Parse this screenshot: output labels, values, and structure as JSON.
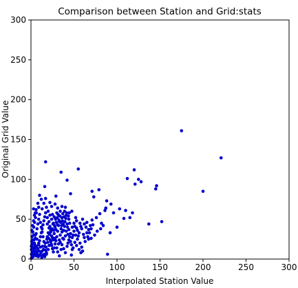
{
  "chart_data": {
    "type": "scatter",
    "title": "Comparison between Station and Grid:stats",
    "xlabel": "Interpolated Station Value",
    "ylabel": "Original Grid Value",
    "xlim": [
      0,
      300
    ],
    "ylim": [
      0,
      300
    ],
    "xticks": [
      "0",
      "50",
      "100",
      "150",
      "200",
      "250",
      "300"
    ],
    "yticks": [
      "0",
      "50",
      "100",
      "150",
      "200",
      "250",
      "300"
    ],
    "grid": false,
    "marker_color": "#0000cc",
    "series": [
      {
        "points": [
          [
            175,
            161
          ],
          [
            221,
            127
          ],
          [
            200,
            85
          ],
          [
            17,
            122
          ],
          [
            55,
            113
          ],
          [
            120,
            112
          ],
          [
            35,
            109
          ],
          [
            125,
            100
          ],
          [
            112,
            101
          ],
          [
            128,
            97
          ],
          [
            121,
            94
          ],
          [
            146,
            92
          ],
          [
            145,
            88
          ],
          [
            16,
            91
          ],
          [
            42,
            99
          ],
          [
            29,
            79
          ],
          [
            46,
            82
          ],
          [
            22,
            71
          ],
          [
            71,
            85
          ],
          [
            79,
            87
          ],
          [
            88,
            73
          ],
          [
            73,
            78
          ],
          [
            137,
            44
          ],
          [
            152,
            47
          ],
          [
            118,
            58
          ],
          [
            110,
            61
          ],
          [
            108,
            51
          ],
          [
            103,
            63
          ],
          [
            96,
            58
          ],
          [
            93,
            69
          ],
          [
            87,
            64
          ],
          [
            86,
            61
          ],
          [
            80,
            57
          ],
          [
            76,
            52
          ],
          [
            71,
            49
          ],
          [
            65,
            46
          ],
          [
            62,
            44
          ],
          [
            58,
            41
          ],
          [
            53,
            39
          ],
          [
            61,
            31
          ],
          [
            55,
            29
          ],
          [
            67,
            37
          ],
          [
            72,
            43
          ],
          [
            82,
            45
          ],
          [
            92,
            33
          ],
          [
            100,
            40
          ],
          [
            115,
            52
          ],
          [
            89,
            6
          ],
          [
            47,
            5
          ],
          [
            49,
            14
          ],
          [
            43,
            20
          ],
          [
            38,
            25
          ],
          [
            34,
            30
          ],
          [
            31,
            35
          ],
          [
            28,
            40
          ],
          [
            26,
            45
          ],
          [
            24,
            50
          ],
          [
            22,
            55
          ],
          [
            20,
            60
          ],
          [
            18,
            65
          ],
          [
            15,
            70
          ],
          [
            12,
            75
          ],
          [
            10,
            80
          ],
          [
            8,
            70
          ],
          [
            6,
            62
          ],
          [
            4,
            55
          ],
          [
            3,
            48
          ],
          [
            2,
            42
          ],
          [
            1,
            36
          ],
          [
            5,
            30
          ],
          [
            7,
            25
          ],
          [
            9,
            20
          ],
          [
            11,
            15
          ],
          [
            13,
            10
          ],
          [
            14,
            5
          ],
          [
            16,
            3
          ],
          [
            18,
            8
          ],
          [
            20,
            12
          ],
          [
            21,
            17
          ],
          [
            23,
            22
          ],
          [
            25,
            27
          ],
          [
            27,
            32
          ],
          [
            29,
            37
          ],
          [
            32,
            42
          ],
          [
            33,
            47
          ],
          [
            36,
            52
          ],
          [
            37,
            57
          ],
          [
            39,
            60
          ],
          [
            41,
            55
          ],
          [
            44,
            50
          ],
          [
            45,
            45
          ],
          [
            48,
            40
          ],
          [
            50,
            35
          ],
          [
            52,
            30
          ],
          [
            54,
            25
          ],
          [
            57,
            20
          ],
          [
            59,
            15
          ],
          [
            60,
            10
          ],
          [
            63,
            22
          ],
          [
            66,
            28
          ],
          [
            68,
            33
          ],
          [
            70,
            26
          ],
          [
            74,
            30
          ],
          [
            77,
            35
          ],
          [
            81,
            38
          ],
          [
            84,
            42
          ],
          [
            1,
            2
          ],
          [
            2,
            5
          ],
          [
            3,
            8
          ],
          [
            4,
            11
          ],
          [
            5,
            14
          ],
          [
            6,
            4
          ],
          [
            7,
            9
          ],
          [
            8,
            13
          ],
          [
            9,
            18
          ],
          [
            10,
            23
          ],
          [
            11,
            28
          ],
          [
            12,
            33
          ],
          [
            13,
            38
          ],
          [
            14,
            43
          ],
          [
            15,
            48
          ],
          [
            16,
            53
          ],
          [
            17,
            58
          ],
          [
            19,
            44
          ],
          [
            21,
            39
          ],
          [
            23,
            34
          ],
          [
            24,
            29
          ],
          [
            26,
            24
          ],
          [
            28,
            19
          ],
          [
            30,
            14
          ],
          [
            31,
            9
          ],
          [
            33,
            4
          ],
          [
            35,
            12
          ],
          [
            36,
            18
          ],
          [
            38,
            13
          ],
          [
            40,
            8
          ],
          [
            42,
            16
          ],
          [
            44,
            24
          ],
          [
            46,
            32
          ],
          [
            48,
            27
          ],
          [
            51,
            21
          ],
          [
            53,
            17
          ],
          [
            56,
            12
          ],
          [
            58,
            8
          ],
          [
            1,
            18
          ],
          [
            2,
            24
          ],
          [
            3,
            30
          ],
          [
            4,
            20
          ],
          [
            5,
            26
          ],
          [
            6,
            32
          ],
          [
            7,
            38
          ],
          [
            8,
            44
          ],
          [
            9,
            50
          ],
          [
            10,
            56
          ],
          [
            11,
            46
          ],
          [
            12,
            40
          ],
          [
            13,
            34
          ],
          [
            14,
            28
          ],
          [
            15,
            22
          ],
          [
            16,
            16
          ],
          [
            17,
            11
          ],
          [
            18,
            6
          ],
          [
            19,
            28
          ],
          [
            20,
            33
          ],
          [
            21,
            47
          ],
          [
            22,
            41
          ],
          [
            23,
            36
          ],
          [
            24,
            17
          ],
          [
            25,
            13
          ],
          [
            26,
            9
          ],
          [
            27,
            14
          ],
          [
            28,
            26
          ],
          [
            29,
            23
          ],
          [
            30,
            28
          ],
          [
            31,
            43
          ],
          [
            32,
            19
          ],
          [
            33,
            24
          ],
          [
            34,
            21
          ],
          [
            35,
            38
          ],
          [
            36,
            34
          ],
          [
            37,
            26
          ],
          [
            38,
            36
          ],
          [
            39,
            41
          ],
          [
            40,
            29
          ],
          [
            41,
            35
          ],
          [
            42,
            44
          ],
          [
            43,
            31
          ],
          [
            44,
            37
          ],
          [
            45,
            28
          ],
          [
            46,
            22
          ],
          [
            47,
            18
          ],
          [
            48,
            12
          ],
          [
            49,
            30
          ],
          [
            50,
            45
          ],
          [
            51,
            41
          ],
          [
            52,
            52
          ],
          [
            53,
            48
          ],
          [
            54,
            36
          ],
          [
            56,
            33
          ],
          [
            57,
            45
          ],
          [
            59,
            38
          ],
          [
            60,
            50
          ],
          [
            62,
            27
          ],
          [
            64,
            40
          ],
          [
            65,
            33
          ],
          [
            67,
            25
          ],
          [
            69,
            42
          ],
          [
            70,
            38
          ],
          [
            0.5,
            1
          ],
          [
            0.5,
            6
          ],
          [
            0.5,
            12
          ],
          [
            1.5,
            9
          ],
          [
            2.5,
            3
          ],
          [
            3.5,
            15
          ],
          [
            4.5,
            6
          ],
          [
            0.8,
            22
          ],
          [
            1.2,
            28
          ],
          [
            2.2,
            34
          ],
          [
            3.2,
            40
          ],
          [
            4.2,
            46
          ],
          [
            5.2,
            52
          ],
          [
            6.2,
            58
          ],
          [
            0.5,
            16
          ],
          [
            1.5,
            20
          ],
          [
            2.5,
            14
          ],
          [
            3.5,
            24
          ],
          [
            4.5,
            18
          ],
          [
            5.5,
            10
          ],
          [
            6.5,
            16
          ],
          [
            7.5,
            6
          ],
          [
            8.5,
            3
          ],
          [
            9.5,
            10
          ],
          [
            10.5,
            5
          ],
          [
            11.5,
            8
          ],
          [
            12.5,
            2
          ],
          [
            13.5,
            16
          ],
          [
            14.5,
            12
          ],
          [
            15.5,
            6
          ],
          [
            16.5,
            20
          ],
          [
            17.5,
            15
          ],
          [
            18.5,
            25
          ],
          [
            19.5,
            21
          ],
          [
            20.5,
            26
          ],
          [
            21.5,
            31
          ],
          [
            22.5,
            24
          ],
          [
            23.5,
            19
          ],
          [
            24.5,
            38
          ],
          [
            25.5,
            44
          ],
          [
            26.5,
            36
          ],
          [
            27.5,
            42
          ],
          [
            28.5,
            50
          ],
          [
            29.5,
            46
          ],
          [
            30.5,
            52
          ],
          [
            31.5,
            56
          ],
          [
            32.5,
            49
          ],
          [
            33.5,
            54
          ],
          [
            34.5,
            46
          ],
          [
            35.5,
            42
          ],
          [
            36.5,
            48
          ],
          [
            37.5,
            44
          ],
          [
            38.5,
            53
          ],
          [
            39.5,
            47
          ],
          [
            40.5,
            51
          ],
          [
            41.5,
            58
          ],
          [
            42.5,
            40
          ],
          [
            43.5,
            54
          ],
          [
            44.5,
            58
          ],
          [
            47.5,
            60
          ],
          [
            25,
            56
          ],
          [
            27,
            53
          ],
          [
            30,
            58
          ],
          [
            34,
            60
          ],
          [
            19,
            52
          ],
          [
            13,
            63
          ],
          [
            9,
            65
          ],
          [
            5,
            58
          ],
          [
            3,
            63
          ],
          [
            31,
            64
          ],
          [
            36,
            66
          ],
          [
            40,
            65
          ],
          [
            28,
            69
          ],
          [
            24,
            66
          ],
          [
            17,
            76
          ]
        ]
      }
    ]
  }
}
